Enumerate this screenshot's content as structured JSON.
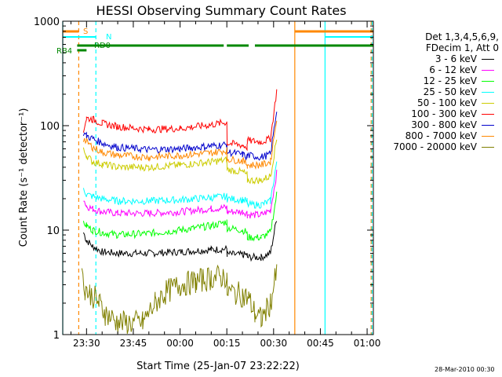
{
  "chart_data": {
    "type": "line",
    "title": "HESSI Observing Summary Count Rates",
    "xlabel": "Start Time (25-Jan-07 23:22:22)",
    "ylabel": "Count Rate (s⁻¹ detector⁻¹)",
    "x_ticks": [
      "23:30",
      "23:45",
      "00:00",
      "00:15",
      "00:30",
      "00:45",
      "01:00"
    ],
    "x_tick_minutes": [
      30,
      45,
      60,
      75,
      90,
      105,
      120
    ],
    "xlim_minutes": [
      22.37,
      122.0
    ],
    "yscale": "log",
    "ylim": [
      1,
      1000
    ],
    "y_ticks": [
      "1",
      "10",
      "100",
      "1000"
    ],
    "y_tick_values": [
      1,
      10,
      100,
      1000
    ],
    "legend_header": [
      "Det 1,3,4,5,6,9,",
      "FDecim 1, Att 0"
    ],
    "legend_position": "right",
    "series": [
      {
        "name": "3 - 6 keV",
        "color": "#000000",
        "points": [
          [
            29,
            9.5
          ],
          [
            30,
            8
          ],
          [
            32,
            7
          ],
          [
            35,
            6.2
          ],
          [
            40,
            6
          ],
          [
            50,
            6
          ],
          [
            60,
            6.2
          ],
          [
            70,
            6.5
          ],
          [
            75,
            6.6
          ],
          [
            75.1,
            5.9
          ],
          [
            80,
            5.8
          ],
          [
            81.5,
            5.8
          ],
          [
            81.6,
            5.5
          ],
          [
            86,
            5.5
          ],
          [
            89,
            6
          ],
          [
            91,
            13
          ]
        ]
      },
      {
        "name": "6 - 12 keV",
        "color": "#ff00ff",
        "points": [
          [
            29,
            20
          ],
          [
            30,
            17
          ],
          [
            32,
            16
          ],
          [
            35,
            15
          ],
          [
            40,
            14.5
          ],
          [
            50,
            14.5
          ],
          [
            60,
            15
          ],
          [
            70,
            16
          ],
          [
            75,
            16.5
          ],
          [
            75.1,
            15
          ],
          [
            80,
            15
          ],
          [
            81.5,
            14.7
          ],
          [
            81.6,
            14
          ],
          [
            86,
            14
          ],
          [
            89,
            15.5
          ],
          [
            91,
            35
          ]
        ]
      },
      {
        "name": "12 - 25 keV",
        "color": "#00ff00",
        "points": [
          [
            29,
            12
          ],
          [
            30,
            11
          ],
          [
            32,
            10
          ],
          [
            35,
            9.5
          ],
          [
            40,
            9
          ],
          [
            50,
            9.3
          ],
          [
            60,
            10
          ],
          [
            70,
            11
          ],
          [
            75,
            12
          ],
          [
            75.1,
            10.5
          ],
          [
            80,
            10
          ],
          [
            81.5,
            9.5
          ],
          [
            81.6,
            8.5
          ],
          [
            86,
            8.5
          ],
          [
            89,
            9.5
          ],
          [
            91,
            22
          ]
        ]
      },
      {
        "name": "25 - 50 keV",
        "color": "#00ffff",
        "points": [
          [
            29,
            25
          ],
          [
            30,
            22
          ],
          [
            32,
            21
          ],
          [
            35,
            20
          ],
          [
            40,
            19
          ],
          [
            50,
            19
          ],
          [
            60,
            19.5
          ],
          [
            70,
            20.5
          ],
          [
            75,
            21
          ],
          [
            75.1,
            20
          ],
          [
            80,
            19.5
          ],
          [
            81.5,
            19
          ],
          [
            81.6,
            17.5
          ],
          [
            86,
            17.5
          ],
          [
            89,
            19
          ],
          [
            91,
            45
          ]
        ]
      },
      {
        "name": "50 - 100 keV",
        "color": "#cccc00",
        "points": [
          [
            29,
            58
          ],
          [
            30,
            52
          ],
          [
            32,
            45
          ],
          [
            35,
            43
          ],
          [
            40,
            40
          ],
          [
            50,
            40
          ],
          [
            60,
            42
          ],
          [
            70,
            45
          ],
          [
            75,
            47
          ],
          [
            75.1,
            38
          ],
          [
            80,
            36
          ],
          [
            81.5,
            34
          ],
          [
            81.6,
            30
          ],
          [
            86,
            30
          ],
          [
            89,
            33
          ],
          [
            91,
            75
          ]
        ]
      },
      {
        "name": "100 - 300 keV",
        "color": "#ff0000",
        "points": [
          [
            29,
            90
          ],
          [
            30,
            118
          ],
          [
            32,
            115
          ],
          [
            35,
            105
          ],
          [
            40,
            98
          ],
          [
            50,
            92
          ],
          [
            60,
            94
          ],
          [
            70,
            102
          ],
          [
            75,
            108
          ],
          [
            75.1,
            68
          ],
          [
            80,
            65
          ],
          [
            81.5,
            62
          ],
          [
            81.6,
            72
          ],
          [
            86,
            70
          ],
          [
            89,
            75
          ],
          [
            91,
            215
          ]
        ]
      },
      {
        "name": "300 - 800 keV",
        "color": "#0000cc",
        "points": [
          [
            29,
            85
          ],
          [
            30,
            80
          ],
          [
            32,
            75
          ],
          [
            35,
            68
          ],
          [
            40,
            62
          ],
          [
            50,
            59
          ],
          [
            60,
            60
          ],
          [
            70,
            64
          ],
          [
            75,
            66
          ],
          [
            75.1,
            56
          ],
          [
            80,
            53
          ],
          [
            81.5,
            50
          ],
          [
            81.6,
            52
          ],
          [
            86,
            50
          ],
          [
            89,
            53
          ],
          [
            91,
            140
          ]
        ]
      },
      {
        "name": "800 - 7000 keV",
        "color": "#ff8800",
        "points": [
          [
            29,
            75
          ],
          [
            30,
            70
          ],
          [
            32,
            62
          ],
          [
            35,
            56
          ],
          [
            40,
            52
          ],
          [
            50,
            50
          ],
          [
            60,
            52
          ],
          [
            70,
            55
          ],
          [
            75,
            58
          ],
          [
            75.1,
            48
          ],
          [
            80,
            46
          ],
          [
            81.5,
            43
          ],
          [
            81.6,
            42
          ],
          [
            86,
            42
          ],
          [
            89,
            45
          ],
          [
            91,
            120
          ]
        ]
      },
      {
        "name": "7000 - 20000 keV",
        "color": "#808000",
        "points": [
          [
            28.5,
            3.5
          ],
          [
            29.5,
            2.8
          ],
          [
            31,
            2.5
          ],
          [
            33,
            2.2
          ],
          [
            34,
            2.0
          ],
          [
            36,
            1.6
          ],
          [
            40,
            1.3
          ],
          [
            48,
            1.3
          ],
          [
            52,
            2.0
          ],
          [
            55,
            2.5
          ],
          [
            60,
            3.0
          ],
          [
            65,
            3.2
          ],
          [
            70,
            3.5
          ],
          [
            75,
            3.6
          ],
          [
            75.1,
            2.6
          ],
          [
            80,
            2.4
          ],
          [
            82,
            2.2
          ],
          [
            84,
            1.6
          ],
          [
            86,
            1.4
          ],
          [
            89,
            2.0
          ],
          [
            91,
            4.0
          ]
        ]
      }
    ],
    "markers": [
      {
        "label": "S",
        "color": "#ff8800",
        "segments": [
          [
            22.37,
            27.5
          ],
          [
            96.8,
            122.0
          ]
        ]
      },
      {
        "label": "N",
        "color": "#00ffff",
        "segments": [
          [
            22.37,
            33.0
          ],
          [
            106.5,
            122.0
          ]
        ]
      },
      {
        "label": "RD0",
        "color": "#008800",
        "segments": [
          [
            27.0,
            74.0
          ],
          [
            75.0,
            82.0
          ],
          [
            84.0,
            122.0
          ]
        ]
      },
      {
        "label": "RB4",
        "color": "#008800",
        "segments": [
          [
            27.0,
            30.0
          ]
        ]
      }
    ],
    "vlines": [
      {
        "x": 22.37,
        "color": "#00ffff",
        "style": "solid"
      },
      {
        "x": 27.5,
        "color": "#ff8800",
        "style": "dashed"
      },
      {
        "x": 33.0,
        "color": "#00ffff",
        "style": "dashed"
      },
      {
        "x": 96.8,
        "color": "#ff8800",
        "style": "solid"
      },
      {
        "x": 106.5,
        "color": "#00ffff",
        "style": "solid"
      },
      {
        "x": 121.3,
        "color": "#ff8800",
        "style": "dashed"
      },
      {
        "x": 121.6,
        "color": "#00ffff",
        "style": "dashed"
      }
    ]
  },
  "timestamp": "28-Mar-2010 00:30"
}
